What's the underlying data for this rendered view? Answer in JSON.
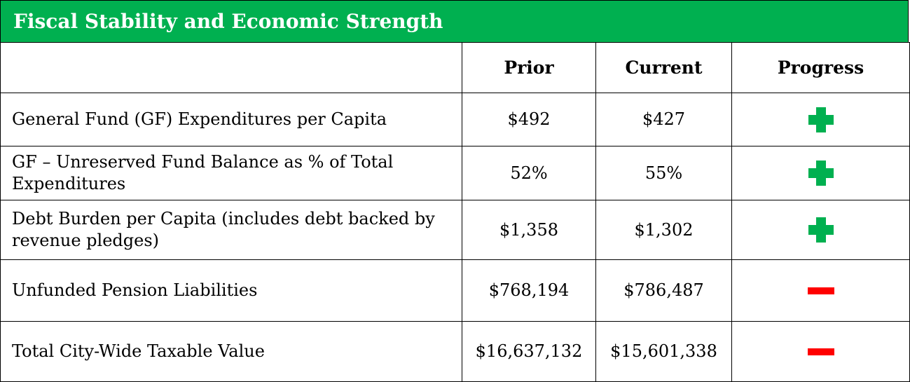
{
  "title": "Fiscal Stability and Economic Strength",
  "table": {
    "header": [
      "Prior",
      "Current",
      "Progress"
    ],
    "rows": [
      {
        "label": "General Fund (GF) Expenditures per Capita",
        "prior": "$492",
        "current": "$427",
        "progress": "plus"
      },
      {
        "label": "GF – Unreserved Fund Balance as % of Total Expenditures",
        "prior": "52%",
        "current": "55%",
        "progress": "plus"
      },
      {
        "label": "Debt Burden per Capita (includes debt backed by revenue pledges)",
        "prior": "$1,358",
        "current": "$1,302",
        "progress": "plus"
      },
      {
        "label": "Unfunded Pension Liabilities",
        "prior": "$768,194",
        "current": "$786,487",
        "progress": "minus"
      },
      {
        "label": "Total City-Wide Taxable Value",
        "prior": "$16,637,132",
        "current": "$15,601,338",
        "progress": "minus"
      }
    ]
  }
}
